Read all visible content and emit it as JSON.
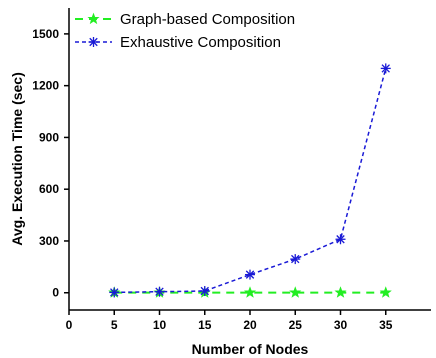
{
  "chart_data": {
    "type": "line",
    "title": "",
    "xlabel": "Number of Nodes",
    "ylabel": "Avg. Execution Time (sec)",
    "x": [
      5,
      10,
      15,
      20,
      25,
      30,
      35
    ],
    "xlim": [
      0,
      40
    ],
    "ylim": [
      -100,
      1650
    ],
    "xticks": [
      0,
      5,
      10,
      15,
      20,
      25,
      30,
      35
    ],
    "yticks": [
      0,
      300,
      600,
      900,
      1200,
      1500
    ],
    "grid": false,
    "legend_position": "top-left",
    "series": [
      {
        "name": "Graph-based Composition",
        "values": [
          1,
          1,
          1,
          1,
          1,
          1,
          1
        ],
        "color": "#22ee22",
        "marker": "star",
        "line_style": "dashed"
      },
      {
        "name": "Exhaustive Composition",
        "values": [
          2,
          6,
          10,
          105,
          195,
          310,
          1300
        ],
        "color": "#1a1ad6",
        "marker": "asterisk",
        "line_style": "dashed"
      }
    ]
  }
}
